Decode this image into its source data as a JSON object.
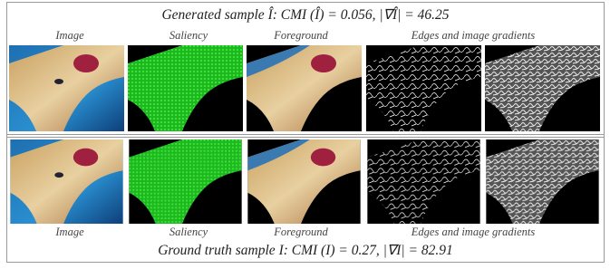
{
  "top_title": "Generated sample  Î: CMI (Î) = 0.056, |∇Î| = 46.25",
  "top_labels": [
    "Image",
    "Saliency",
    "Foreground",
    "Edges and image gradients"
  ],
  "bottom_labels": [
    "Image",
    "Saliency",
    "Foreground",
    "Edges and image gradients"
  ],
  "bottom_title": "Ground truth sample  I: CMI (I) = 0.27,  |∇I| = 82.91"
}
